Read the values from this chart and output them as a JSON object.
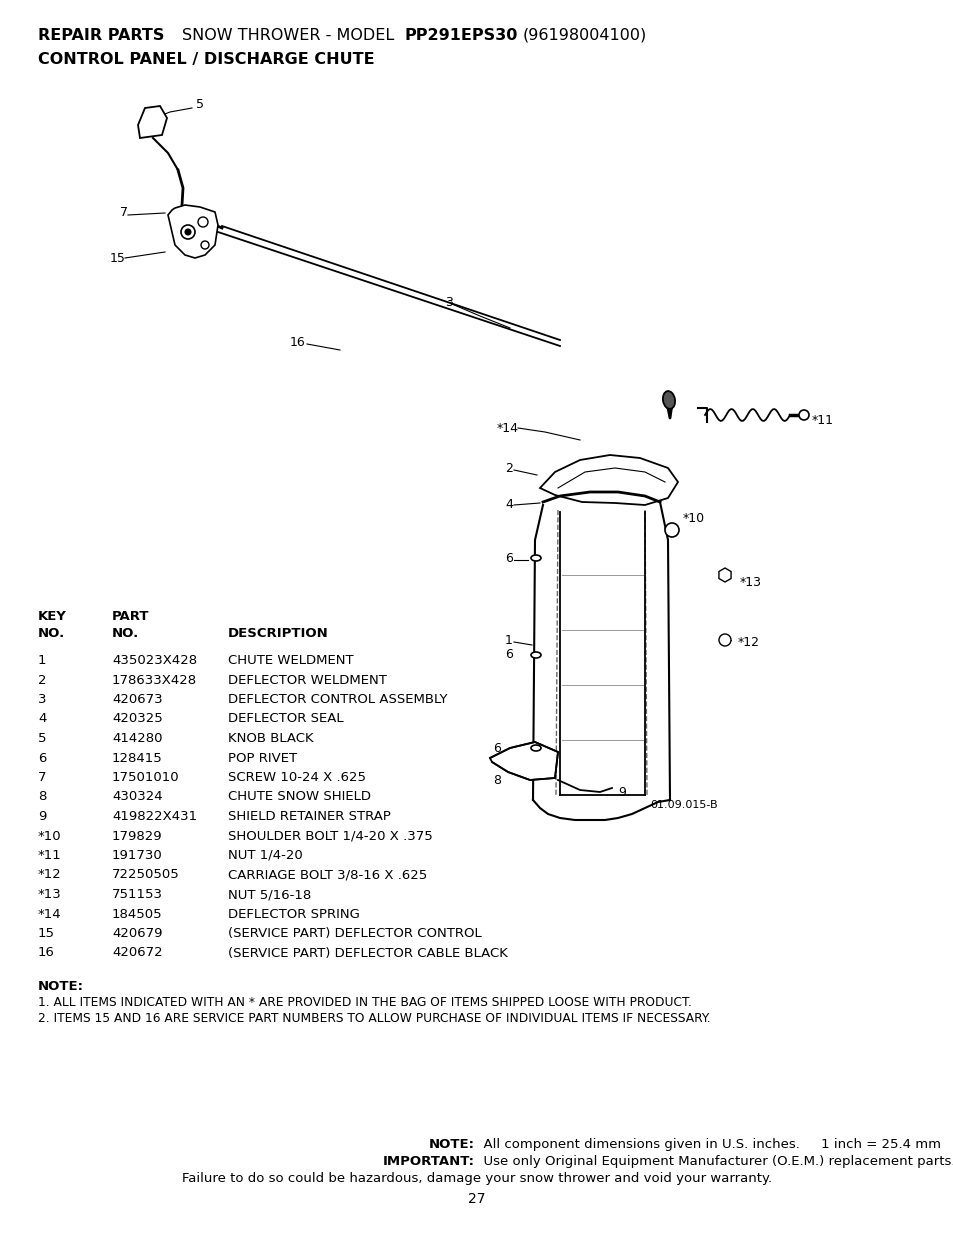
{
  "bg_color": "#ffffff",
  "page_width": 9.54,
  "page_height": 12.35,
  "parts_table": [
    {
      "key": "1",
      "part": "435023X428",
      "desc": "CHUTE WELDMENT"
    },
    {
      "key": "2",
      "part": "178633X428",
      "desc": "DEFLECTOR WELDMENT"
    },
    {
      "key": "3",
      "part": "420673",
      "desc": "DEFLECTOR CONTROL ASSEMBLY"
    },
    {
      "key": "4",
      "part": "420325",
      "desc": "DEFLECTOR SEAL"
    },
    {
      "key": "5",
      "part": "414280",
      "desc": "KNOB BLACK"
    },
    {
      "key": "6",
      "part": "128415",
      "desc": "POP RIVET"
    },
    {
      "key": "7",
      "part": "17501010",
      "desc": "SCREW 10-24 X .625"
    },
    {
      "key": "8",
      "part": "430324",
      "desc": "CHUTE SNOW SHIELD"
    },
    {
      "key": "9",
      "part": "419822X431",
      "desc": "SHIELD RETAINER STRAP"
    },
    {
      "key": "*10",
      "part": "179829",
      "desc": "SHOULDER BOLT 1/4-20 X .375"
    },
    {
      "key": "*11",
      "part": "191730",
      "desc": "NUT 1/4-20"
    },
    {
      "key": "*12",
      "part": "72250505",
      "desc": "CARRIAGE BOLT 3/8-16 X .625"
    },
    {
      "key": "*13",
      "part": "751153",
      "desc": "NUT 5/16-18"
    },
    {
      "key": "*14",
      "part": "184505",
      "desc": "DEFLECTOR SPRING"
    },
    {
      "key": "15",
      "part": "420679",
      "desc": "(SERVICE PART) DEFLECTOR CONTROL"
    },
    {
      "key": "16",
      "part": "420672",
      "desc": "(SERVICE PART) DEFLECTOR CABLE BLACK"
    }
  ],
  "note_lines": [
    "1. ALL ITEMS INDICATED WITH AN * ARE PROVIDED IN THE BAG OF ITEMS SHIPPED LOOSE WITH PRODUCT.",
    "2. ITEMS 15 AND 16 ARE SERVICE PART NUMBERS TO ALLOW PURCHASE OF INDIVIDUAL ITEMS IF NECESSARY."
  ],
  "footer_line3": "Failure to do so could be hazardous, damage your snow thrower and void your warranty.",
  "page_number": "27"
}
